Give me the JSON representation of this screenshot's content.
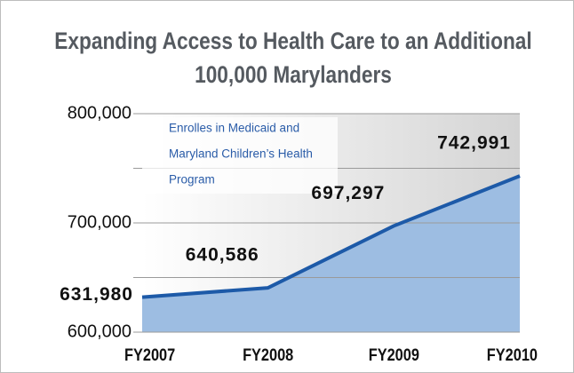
{
  "chart_data": {
    "type": "area",
    "title": [
      "Expanding Access to Health Care to an Additional",
      "100,000 Marylanders"
    ],
    "annotation": [
      "Enrolles in Medicaid and",
      "Maryland Children’s Health",
      "Program"
    ],
    "categories": [
      "FY2007",
      "FY2008",
      "FY2009",
      "FY2010"
    ],
    "values": [
      631980,
      640586,
      697297,
      742991
    ],
    "value_labels": [
      "631,980",
      "640,586",
      "697,297",
      "742,991"
    ],
    "color": "#9dbde2",
    "line_color": "#1d5aa8",
    "ylim": [
      600000,
      800000
    ],
    "yticks": [
      {
        "value": 600000,
        "label": "600,000"
      },
      {
        "value": 700000,
        "label": "700,000"
      },
      {
        "value": 800000,
        "label": "800,000"
      }
    ],
    "minor_gridlines": [
      650000,
      750000
    ],
    "grid": true
  }
}
